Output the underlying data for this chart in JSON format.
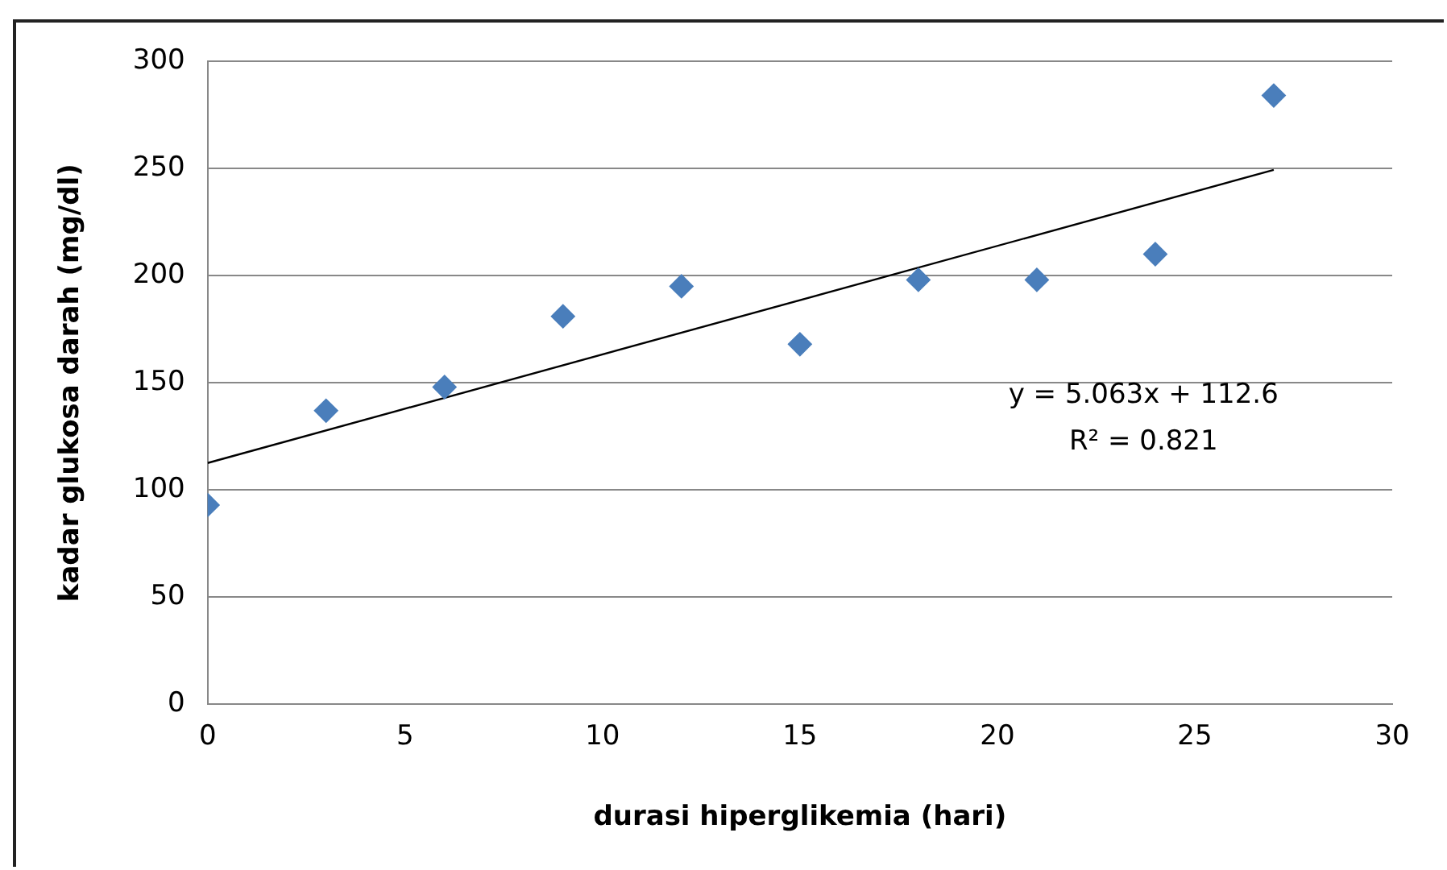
{
  "chart_data": {
    "type": "scatter",
    "xlabel": "durasi hiperglikemia (hari)",
    "ylabel": "kadar glukosa darah (mg/dl)",
    "x": [
      0,
      3,
      6,
      9,
      12,
      15,
      18,
      21,
      24,
      27
    ],
    "series": [
      {
        "color": "#4a7ebb",
        "values": [
          93,
          137,
          148,
          181,
          195,
          168,
          198,
          198,
          210,
          284
        ]
      },
      {
        "type": "line",
        "color": "#000000",
        "marker": "none",
        "x": [
          0,
          27
        ],
        "values": [
          112.6,
          249.3
        ]
      }
    ],
    "xlim": [
      0,
      30
    ],
    "xticks": [
      0,
      5,
      10,
      15,
      20,
      25,
      30
    ],
    "ylim": [
      0,
      300
    ],
    "yticks": [
      0,
      50,
      100,
      150,
      200,
      250,
      300
    ],
    "grid": "y",
    "legend": false,
    "marker": "diamond",
    "annotations": [
      "y = 5.063x + 112.6",
      "R² = 0.821"
    ]
  }
}
